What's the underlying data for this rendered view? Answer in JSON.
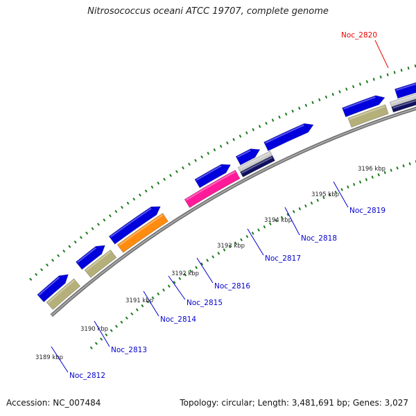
{
  "title": "Nitrosococcus oceani ATCC 19707, complete genome",
  "footer": {
    "accession": "Accession: NC_007484",
    "stats": "Topology: circular; Length: 3,481,691 bp; Genes: 3,027"
  },
  "colors": {
    "backbone": "#888888",
    "tick": "#1a7a1a",
    "blue": "#0000dd",
    "khaki": "#b5b07a",
    "orange": "#ff8c10",
    "magenta": "#ff1a9a",
    "navy": "#101060",
    "red": "#ee0000",
    "gray": "#cccccc",
    "label": "#0000cc",
    "label_red": "#ee0000"
  },
  "kbp_labels": [
    "3189 kbp",
    "3190 kbp",
    "3191 kbp",
    "3192 kbp",
    "3193 kbp",
    "3194 kbp",
    "3195 kbp",
    "3196 kbp"
  ],
  "gene_labels": [
    {
      "text": "Noc_2812",
      "color": "label"
    },
    {
      "text": "Noc_2813",
      "color": "label"
    },
    {
      "text": "Noc_2814",
      "color": "label"
    },
    {
      "text": "Noc_2815",
      "color": "label"
    },
    {
      "text": "Noc_2816",
      "color": "label"
    },
    {
      "text": "Noc_2817",
      "color": "label"
    },
    {
      "text": "Noc_2818",
      "color": "label"
    },
    {
      "text": "Noc_2819",
      "color": "label"
    },
    {
      "text": "Noc_2820",
      "color": "label_red"
    }
  ],
  "features": [
    {
      "name": "feature-blue",
      "color": "blue"
    },
    {
      "name": "feature-blue",
      "color": "blue"
    },
    {
      "name": "feature-blue",
      "color": "blue"
    },
    {
      "name": "feature-blue",
      "color": "blue"
    },
    {
      "name": "feature-blue",
      "color": "blue"
    },
    {
      "name": "feature-blue",
      "color": "blue"
    },
    {
      "name": "feature-blue",
      "color": "blue"
    },
    {
      "name": "feature-blue",
      "color": "blue"
    },
    {
      "name": "feature-blue",
      "color": "blue"
    },
    {
      "name": "feature-blue",
      "color": "blue"
    },
    {
      "name": "feature-khaki",
      "color": "khaki"
    },
    {
      "name": "feature-khaki",
      "color": "khaki"
    },
    {
      "name": "feature-orange",
      "color": "orange"
    },
    {
      "name": "feature-magenta",
      "color": "magenta"
    },
    {
      "name": "feature-gray",
      "color": "gray"
    },
    {
      "name": "feature-navy",
      "color": "navy"
    },
    {
      "name": "feature-khaki",
      "color": "khaki"
    },
    {
      "name": "feature-gray",
      "color": "gray"
    },
    {
      "name": "feature-navy",
      "color": "navy"
    },
    {
      "name": "feature-red",
      "color": "red"
    },
    {
      "name": "feature-gray",
      "color": "gray"
    }
  ]
}
